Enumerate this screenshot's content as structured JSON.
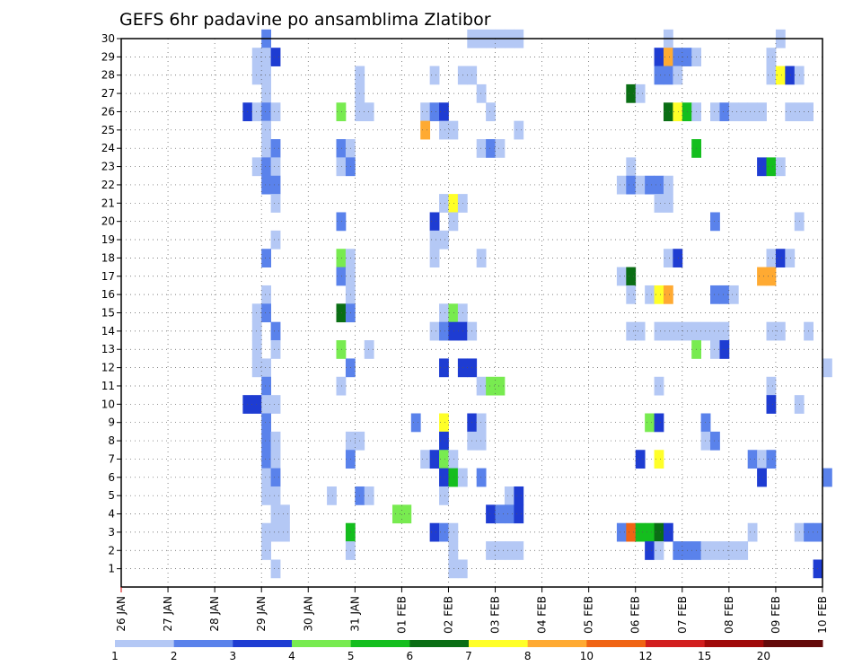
{
  "chart_data": {
    "type": "heatmap",
    "title": "GEFS 6hr padavine po ansamblima Zlatibor",
    "xlabel": "",
    "ylabel": "",
    "x_tick_labels": [
      "26 JAN",
      "27 JAN",
      "28 JAN",
      "29 JAN",
      "30 JAN",
      "31 JAN",
      "01 FEB",
      "02 FEB",
      "03 FEB",
      "04 FEB",
      "05 FEB",
      "06 FEB",
      "07 FEB",
      "08 FEB",
      "09 FEB",
      "10 FEB"
    ],
    "xlim_days": [
      0,
      15
    ],
    "y_tick_labels": [
      "1",
      "2",
      "3",
      "4",
      "5",
      "6",
      "7",
      "8",
      "9",
      "10",
      "11",
      "12",
      "13",
      "14",
      "15",
      "16",
      "17",
      "18",
      "19",
      "20",
      "21",
      "22",
      "23",
      "24",
      "25",
      "26",
      "27",
      "28",
      "29",
      "30"
    ],
    "ylim": [
      0,
      30
    ],
    "grid": "dotted",
    "colorbar": {
      "labels": [
        "1",
        "2",
        "3",
        "4",
        "5",
        "6",
        "7",
        "8",
        "10",
        "12",
        "15",
        "20"
      ],
      "colors": [
        "#b4c8f5",
        "#5a82eb",
        "#1e3cd2",
        "#78eb50",
        "#14be1e",
        "#0a6e14",
        "#ffff28",
        "#ffaa32",
        "#f06414",
        "#d21e1e",
        "#a00a0a",
        "#640a0a"
      ]
    },
    "cells": [
      [
        30,
        3.0,
        2
      ],
      [
        30,
        7.4,
        1
      ],
      [
        30,
        7.6,
        1
      ],
      [
        30,
        7.8,
        1
      ],
      [
        30,
        8.0,
        1
      ],
      [
        30,
        8.2,
        1
      ],
      [
        30,
        8.4,
        1
      ],
      [
        30,
        11.6,
        1
      ],
      [
        30,
        14.0,
        1
      ],
      [
        29,
        2.8,
        1
      ],
      [
        29,
        3.0,
        1
      ],
      [
        29,
        3.2,
        3
      ],
      [
        29,
        11.4,
        3
      ],
      [
        29,
        11.6,
        8
      ],
      [
        29,
        11.8,
        2
      ],
      [
        29,
        12.0,
        2
      ],
      [
        29,
        12.2,
        1
      ],
      [
        29,
        13.8,
        1
      ],
      [
        28,
        2.8,
        1
      ],
      [
        28,
        3.0,
        1
      ],
      [
        28,
        5.0,
        1
      ],
      [
        28,
        6.6,
        1
      ],
      [
        28,
        7.2,
        1
      ],
      [
        28,
        7.4,
        1
      ],
      [
        28,
        11.4,
        2
      ],
      [
        28,
        11.6,
        2
      ],
      [
        28,
        11.8,
        1
      ],
      [
        28,
        13.8,
        1
      ],
      [
        28,
        14.0,
        7
      ],
      [
        28,
        14.2,
        3
      ],
      [
        28,
        14.4,
        1
      ],
      [
        27,
        3.0,
        1
      ],
      [
        27,
        5.0,
        1
      ],
      [
        27,
        7.6,
        1
      ],
      [
        27,
        10.8,
        6
      ],
      [
        27,
        11.0,
        1
      ],
      [
        26,
        2.6,
        3
      ],
      [
        26,
        2.8,
        1
      ],
      [
        26,
        3.0,
        2
      ],
      [
        26,
        3.2,
        1
      ],
      [
        26,
        4.6,
        4
      ],
      [
        26,
        5.0,
        1
      ],
      [
        26,
        5.2,
        1
      ],
      [
        26,
        6.4,
        1
      ],
      [
        26,
        6.6,
        2
      ],
      [
        26,
        6.8,
        3
      ],
      [
        26,
        7.8,
        1
      ],
      [
        26,
        11.6,
        6
      ],
      [
        26,
        11.8,
        7
      ],
      [
        26,
        12.0,
        5
      ],
      [
        26,
        12.2,
        1
      ],
      [
        26,
        12.6,
        1
      ],
      [
        26,
        12.8,
        2
      ],
      [
        26,
        13.0,
        1
      ],
      [
        26,
        13.2,
        1
      ],
      [
        26,
        13.4,
        1
      ],
      [
        26,
        13.6,
        1
      ],
      [
        26,
        14.2,
        1
      ],
      [
        26,
        14.4,
        1
      ],
      [
        26,
        14.6,
        1
      ],
      [
        25,
        3.0,
        1
      ],
      [
        25,
        6.4,
        8
      ],
      [
        25,
        6.8,
        1
      ],
      [
        25,
        7.0,
        1
      ],
      [
        25,
        8.4,
        1
      ],
      [
        24,
        3.0,
        1
      ],
      [
        24,
        3.2,
        2
      ],
      [
        24,
        4.6,
        2
      ],
      [
        24,
        4.8,
        1
      ],
      [
        24,
        7.6,
        1
      ],
      [
        24,
        7.8,
        2
      ],
      [
        24,
        8.0,
        1
      ],
      [
        24,
        12.2,
        5
      ],
      [
        23,
        2.8,
        1
      ],
      [
        23,
        3.0,
        2
      ],
      [
        23,
        3.2,
        1
      ],
      [
        23,
        4.6,
        1
      ],
      [
        23,
        4.8,
        2
      ],
      [
        23,
        10.8,
        1
      ],
      [
        23,
        13.6,
        3
      ],
      [
        23,
        13.8,
        5
      ],
      [
        23,
        14.0,
        1
      ],
      [
        22,
        3.0,
        2
      ],
      [
        22,
        3.2,
        2
      ],
      [
        22,
        10.6,
        1
      ],
      [
        22,
        10.8,
        2
      ],
      [
        22,
        11.0,
        1
      ],
      [
        22,
        11.2,
        2
      ],
      [
        22,
        11.4,
        2
      ],
      [
        22,
        11.6,
        1
      ],
      [
        21,
        3.2,
        1
      ],
      [
        21,
        6.8,
        1
      ],
      [
        21,
        7.0,
        7
      ],
      [
        21,
        7.2,
        1
      ],
      [
        21,
        11.4,
        1
      ],
      [
        21,
        11.6,
        1
      ],
      [
        20,
        4.6,
        2
      ],
      [
        20,
        6.6,
        3
      ],
      [
        20,
        7.0,
        1
      ],
      [
        20,
        12.6,
        2
      ],
      [
        20,
        14.4,
        1
      ],
      [
        19,
        3.2,
        1
      ],
      [
        19,
        6.6,
        1
      ],
      [
        19,
        6.8,
        1
      ],
      [
        18,
        3.0,
        2
      ],
      [
        18,
        4.6,
        4
      ],
      [
        18,
        4.8,
        1
      ],
      [
        18,
        6.6,
        1
      ],
      [
        18,
        7.6,
        1
      ],
      [
        18,
        11.6,
        1
      ],
      [
        18,
        11.8,
        3
      ],
      [
        18,
        13.8,
        1
      ],
      [
        18,
        14.0,
        3
      ],
      [
        18,
        14.2,
        1
      ],
      [
        17,
        4.6,
        2
      ],
      [
        17,
        4.8,
        1
      ],
      [
        17,
        10.6,
        1
      ],
      [
        17,
        10.8,
        6
      ],
      [
        17,
        13.6,
        8
      ],
      [
        17,
        13.8,
        8
      ],
      [
        16,
        3.0,
        1
      ],
      [
        16,
        4.8,
        1
      ],
      [
        16,
        10.8,
        1
      ],
      [
        16,
        11.2,
        1
      ],
      [
        16,
        11.4,
        7
      ],
      [
        16,
        11.6,
        8
      ],
      [
        16,
        12.6,
        2
      ],
      [
        16,
        12.8,
        2
      ],
      [
        16,
        13.0,
        1
      ],
      [
        15,
        2.8,
        1
      ],
      [
        15,
        3.0,
        2
      ],
      [
        15,
        4.6,
        6
      ],
      [
        15,
        4.8,
        2
      ],
      [
        15,
        6.8,
        1
      ],
      [
        15,
        7.0,
        4
      ],
      [
        15,
        7.2,
        1
      ],
      [
        14,
        2.8,
        1
      ],
      [
        14,
        3.2,
        2
      ],
      [
        14,
        6.6,
        1
      ],
      [
        14,
        6.8,
        2
      ],
      [
        14,
        7.0,
        3
      ],
      [
        14,
        7.2,
        3
      ],
      [
        14,
        7.4,
        1
      ],
      [
        14,
        10.8,
        1
      ],
      [
        14,
        11.0,
        1
      ],
      [
        14,
        11.4,
        1
      ],
      [
        14,
        11.6,
        1
      ],
      [
        14,
        11.8,
        1
      ],
      [
        14,
        12.0,
        1
      ],
      [
        14,
        12.2,
        1
      ],
      [
        14,
        12.4,
        1
      ],
      [
        14,
        12.6,
        1
      ],
      [
        14,
        12.8,
        1
      ],
      [
        14,
        13.8,
        1
      ],
      [
        14,
        14.0,
        1
      ],
      [
        14,
        14.6,
        1
      ],
      [
        13,
        2.8,
        1
      ],
      [
        13,
        3.2,
        1
      ],
      [
        13,
        4.6,
        4
      ],
      [
        13,
        5.2,
        1
      ],
      [
        13,
        12.2,
        4
      ],
      [
        13,
        12.6,
        1
      ],
      [
        13,
        12.8,
        3
      ],
      [
        12,
        2.8,
        1
      ],
      [
        12,
        3.0,
        1
      ],
      [
        12,
        4.8,
        2
      ],
      [
        12,
        6.8,
        3
      ],
      [
        12,
        7.2,
        3
      ],
      [
        12,
        7.4,
        3
      ],
      [
        12,
        15.0,
        1
      ],
      [
        11,
        3.0,
        2
      ],
      [
        11,
        4.6,
        1
      ],
      [
        11,
        7.6,
        1
      ],
      [
        11,
        7.8,
        4
      ],
      [
        11,
        8.0,
        4
      ],
      [
        11,
        11.4,
        1
      ],
      [
        11,
        13.8,
        1
      ],
      [
        10,
        2.6,
        3
      ],
      [
        10,
        2.8,
        3
      ],
      [
        10,
        3.0,
        1
      ],
      [
        10,
        3.2,
        1
      ],
      [
        10,
        13.8,
        3
      ],
      [
        10,
        14.4,
        1
      ],
      [
        9,
        3.0,
        2
      ],
      [
        9,
        6.2,
        2
      ],
      [
        9,
        6.8,
        7
      ],
      [
        9,
        7.4,
        3
      ],
      [
        9,
        7.6,
        1
      ],
      [
        9,
        11.2,
        4
      ],
      [
        9,
        11.4,
        3
      ],
      [
        9,
        12.4,
        2
      ],
      [
        8,
        3.0,
        2
      ],
      [
        8,
        3.2,
        1
      ],
      [
        8,
        4.8,
        1
      ],
      [
        8,
        5.0,
        1
      ],
      [
        8,
        6.8,
        3
      ],
      [
        8,
        7.4,
        1
      ],
      [
        8,
        7.6,
        1
      ],
      [
        8,
        12.4,
        1
      ],
      [
        8,
        12.6,
        2
      ],
      [
        7,
        3.0,
        2
      ],
      [
        7,
        3.2,
        1
      ],
      [
        7,
        4.8,
        2
      ],
      [
        7,
        6.4,
        1
      ],
      [
        7,
        6.6,
        3
      ],
      [
        7,
        6.8,
        4
      ],
      [
        7,
        7.0,
        1
      ],
      [
        7,
        11.0,
        3
      ],
      [
        7,
        11.4,
        7
      ],
      [
        7,
        13.4,
        2
      ],
      [
        7,
        13.6,
        1
      ],
      [
        7,
        13.8,
        2
      ],
      [
        6,
        3.0,
        1
      ],
      [
        6,
        3.2,
        2
      ],
      [
        6,
        6.8,
        3
      ],
      [
        6,
        7.0,
        5
      ],
      [
        6,
        7.2,
        1
      ],
      [
        6,
        7.6,
        2
      ],
      [
        6,
        13.6,
        3
      ],
      [
        6,
        15.0,
        2
      ],
      [
        5,
        3.0,
        1
      ],
      [
        5,
        3.2,
        1
      ],
      [
        5,
        4.4,
        1
      ],
      [
        5,
        5.0,
        2
      ],
      [
        5,
        5.2,
        1
      ],
      [
        5,
        6.8,
        1
      ],
      [
        5,
        8.2,
        1
      ],
      [
        5,
        8.4,
        3
      ],
      [
        4,
        3.2,
        1
      ],
      [
        4,
        3.4,
        1
      ],
      [
        4,
        5.8,
        4
      ],
      [
        4,
        6.0,
        4
      ],
      [
        4,
        7.8,
        3
      ],
      [
        4,
        8.0,
        2
      ],
      [
        4,
        8.2,
        2
      ],
      [
        4,
        8.4,
        3
      ],
      [
        3,
        3.0,
        1
      ],
      [
        3,
        3.2,
        1
      ],
      [
        3,
        3.4,
        1
      ],
      [
        3,
        4.8,
        5
      ],
      [
        3,
        6.6,
        3
      ],
      [
        3,
        6.8,
        2
      ],
      [
        3,
        7.0,
        1
      ],
      [
        3,
        10.6,
        2
      ],
      [
        3,
        10.8,
        9
      ],
      [
        3,
        11.0,
        5
      ],
      [
        3,
        11.2,
        5
      ],
      [
        3,
        11.4,
        6
      ],
      [
        3,
        11.6,
        3
      ],
      [
        3,
        13.4,
        1
      ],
      [
        3,
        14.4,
        1
      ],
      [
        3,
        14.6,
        2
      ],
      [
        3,
        14.8,
        2
      ],
      [
        2,
        3.0,
        1
      ],
      [
        2,
        4.8,
        1
      ],
      [
        2,
        7.0,
        1
      ],
      [
        2,
        7.8,
        1
      ],
      [
        2,
        8.0,
        1
      ],
      [
        2,
        8.2,
        1
      ],
      [
        2,
        8.4,
        1
      ],
      [
        2,
        11.2,
        3
      ],
      [
        2,
        11.4,
        1
      ],
      [
        2,
        11.8,
        2
      ],
      [
        2,
        12.0,
        2
      ],
      [
        2,
        12.2,
        2
      ],
      [
        2,
        12.4,
        1
      ],
      [
        2,
        12.6,
        1
      ],
      [
        2,
        12.8,
        1
      ],
      [
        2,
        13.0,
        1
      ],
      [
        2,
        13.2,
        1
      ],
      [
        1,
        3.2,
        1
      ],
      [
        1,
        7.0,
        1
      ],
      [
        1,
        7.2,
        1
      ],
      [
        1,
        14.8,
        3
      ]
    ]
  }
}
